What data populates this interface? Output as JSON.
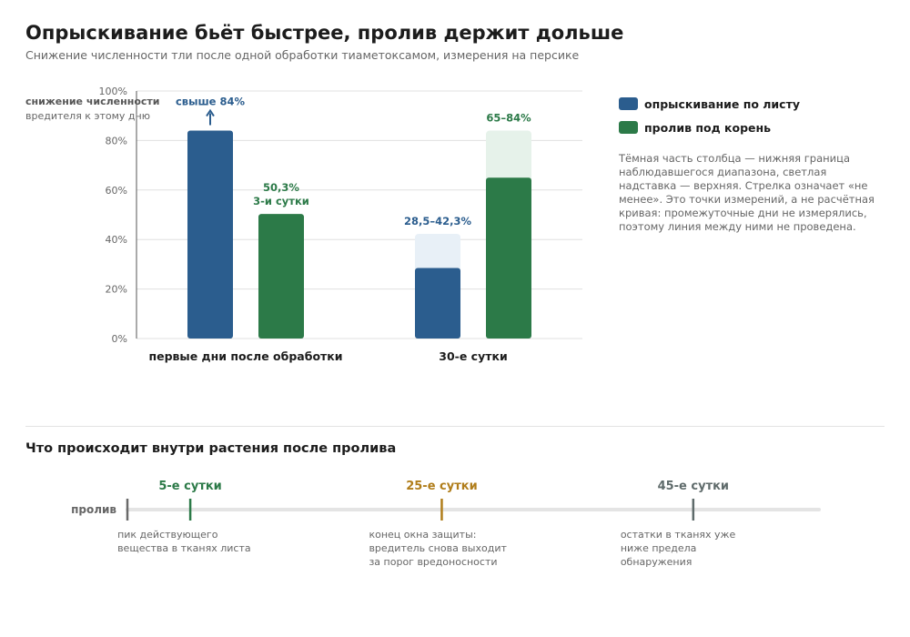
{
  "header": {
    "title": "Опрыскивание бьёт быстрее, пролив держит дольше",
    "subtitle": "Снижение численности тли после одной обработки тиаметоксамом, измерения на персике"
  },
  "colors": {
    "spray": "#2b5d8e",
    "spray_light": "#e8f0f7",
    "drench": "#2c7a48",
    "drench_light": "#e6f2ea",
    "grid": "#e0e0e0",
    "day5": "#2c7a48",
    "day25": "#b07d1a",
    "day45": "#5f6b6b"
  },
  "chart_data": {
    "type": "bar",
    "ylabel_bold": "снижение численности",
    "ylabel_rest": "вредителя к этому дню",
    "ylim": [
      0,
      100
    ],
    "yticks": [
      0,
      20,
      40,
      60,
      80,
      100
    ],
    "ytick_labels": [
      "0%",
      "20%",
      "40%",
      "60%",
      "80%",
      "100%"
    ],
    "categories": [
      "первые дни после обработки",
      "30-е сутки"
    ],
    "series": [
      {
        "name": "опрыскивание по листу",
        "color_key": "spray",
        "low": [
          84,
          28.5
        ],
        "high": [
          null,
          42.3
        ],
        "arrow": [
          true,
          false
        ],
        "labels": [
          [
            "свыше 84%"
          ],
          [
            "28,5–42,3%"
          ]
        ]
      },
      {
        "name": "пролив под корень",
        "color_key": "drench",
        "low": [
          50.3,
          65
        ],
        "high": [
          null,
          84
        ],
        "arrow": [
          false,
          false
        ],
        "labels": [
          [
            "50,3%",
            "3-и сутки"
          ],
          [
            "65–84%"
          ]
        ]
      }
    ],
    "legend_position": "right",
    "grid": true
  },
  "legend": {
    "items": [
      {
        "label": "опрыскивание по листу",
        "color_key": "spray"
      },
      {
        "label": "пролив под корень",
        "color_key": "drench"
      }
    ],
    "note": "Тёмная часть столбца — нижняя граница наблюдавшегося диапазона, светлая надставка — верхняя. Стрелка означает «не менее». Это точки измерений, а не расчётная кривая: промежуточные дни не измерялись, поэтому линия между ними не проведена."
  },
  "timeline": {
    "title": "Что происходит внутри растения после пролива",
    "start_label": "пролив",
    "start_day": 0,
    "end_day": 55,
    "events": [
      {
        "day": 5,
        "label": "5-е сутки",
        "color_key": "day5",
        "desc": [
          "пик действующего",
          "вещества в тканях листа"
        ]
      },
      {
        "day": 25,
        "label": "25-е сутки",
        "color_key": "day25",
        "desc": [
          "конец окна защиты:",
          "вредитель снова выходит",
          "за порог вредоносности"
        ]
      },
      {
        "day": 45,
        "label": "45-е сутки",
        "color_key": "day45",
        "desc": [
          "остатки в тканях уже",
          "ниже предела",
          "обнаружения"
        ]
      }
    ]
  }
}
